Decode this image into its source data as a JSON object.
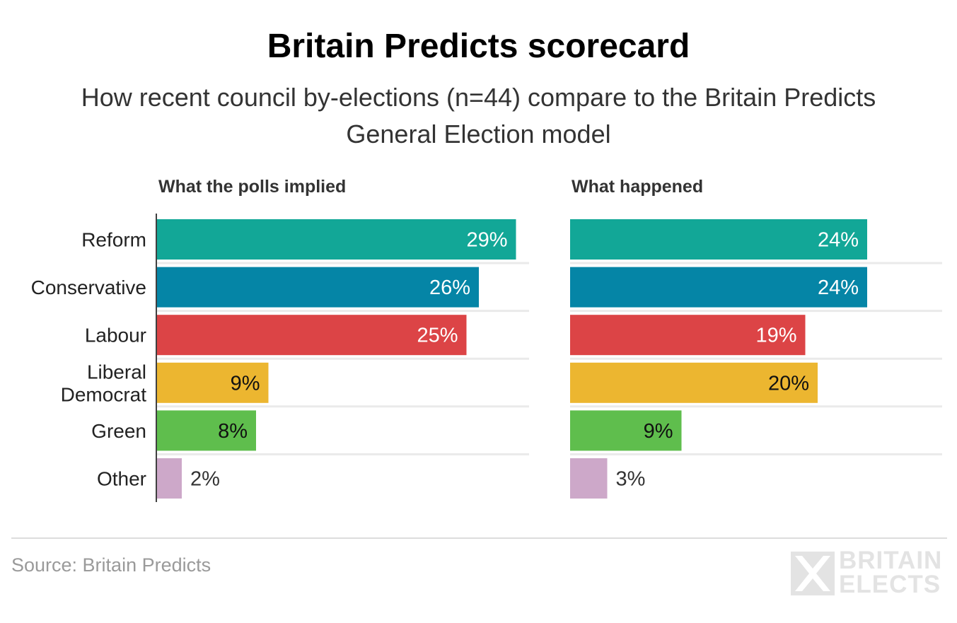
{
  "chart_data": {
    "type": "bar",
    "orientation": "horizontal",
    "title": "Britain Predicts scorecard",
    "subtitle": "How recent council by-elections (n=44) compare to the Britain Predicts General Election model",
    "categories": [
      "Reform",
      "Conservative",
      "Labour",
      "Liberal Democrat",
      "Green",
      "Other"
    ],
    "category_lines": [
      [
        "Reform"
      ],
      [
        "Conservative"
      ],
      [
        "Labour"
      ],
      [
        "Liberal",
        "Democrat"
      ],
      [
        "Green"
      ],
      [
        "Other"
      ]
    ],
    "colors": [
      "#12a797",
      "#0585a6",
      "#dc4446",
      "#ecb630",
      "#5fbe4d",
      "#cda8c9"
    ],
    "label_colors": [
      "#ffffff",
      "#ffffff",
      "#ffffff",
      "#111111",
      "#111111",
      "#333333"
    ],
    "xlim": [
      0,
      100
    ],
    "series": [
      {
        "name": "What the polls implied",
        "values": [
          29,
          26,
          25,
          9,
          8,
          2
        ],
        "labels": [
          "29%",
          "26%",
          "25%",
          "9%",
          "8%",
          "2%"
        ]
      },
      {
        "name": "What happened",
        "values": [
          24,
          24,
          19,
          20,
          9,
          3
        ],
        "labels": [
          "24%",
          "24%",
          "19%",
          "20%",
          "9%",
          "3%"
        ]
      }
    ],
    "source": "Source: Britain Predicts"
  },
  "logo": {
    "line1": "BRITAIN",
    "line2": "ELECTS"
  }
}
